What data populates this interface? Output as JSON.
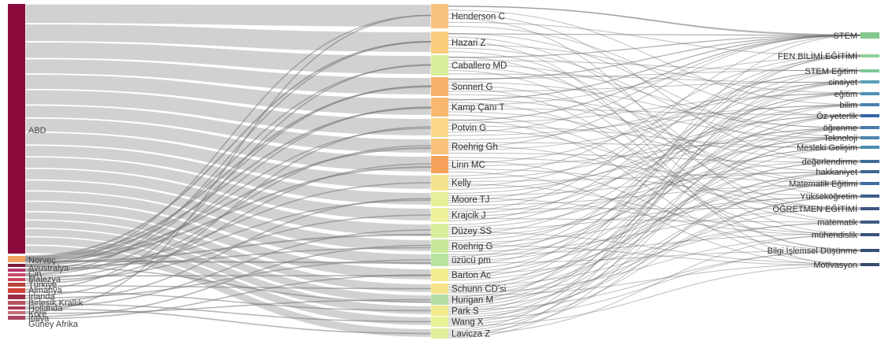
{
  "countries": [
    {
      "label": "ABD",
      "color": "#8b0a3c"
    },
    {
      "label": "Norveç",
      "color": "#f3a15f"
    },
    {
      "label": "Avustralya",
      "color": "#7b1b3e"
    },
    {
      "label": "Çin",
      "color": "#b8336a"
    },
    {
      "label": "Malezya",
      "color": "#c44a64"
    },
    {
      "label": "Türkiye",
      "color": "#c8405a"
    },
    {
      "label": "Almanya",
      "color": "#b8443f"
    },
    {
      "label": "İrlanda",
      "color": "#d0403a"
    },
    {
      "label": "Birleşik Krallık",
      "color": "#9a2f45"
    },
    {
      "label": "Hollanda",
      "color": "#b4545c"
    },
    {
      "label": "Kore",
      "color": "#a63b53"
    },
    {
      "label": "İtalya",
      "color": "#c46e73"
    },
    {
      "label": "Güney Afrika",
      "color": "#a74563"
    }
  ],
  "authors": [
    {
      "label": "Henderson C",
      "color": "#f7c27e"
    },
    {
      "label": "Hazari Z",
      "color": "#f9cd7c"
    },
    {
      "label": "Caballero MD",
      "color": "#d8ee9a"
    },
    {
      "label": "Sonnert G",
      "color": "#f7b26a"
    },
    {
      "label": "Kamp Çanı T",
      "color": "#f8b86e"
    },
    {
      "label": "Potvin G",
      "color": "#fbd78a"
    },
    {
      "label": "Roehrig Gh",
      "color": "#f9c27a"
    },
    {
      "label": "Linn MC",
      "color": "#f6a25a"
    },
    {
      "label": "Kelly",
      "color": "#f4e38e"
    },
    {
      "label": "Moore TJ",
      "color": "#e8ef9a"
    },
    {
      "label": "Krajcik J",
      "color": "#eef29a"
    },
    {
      "label": "Düzey SS",
      "color": "#d9ee9c"
    },
    {
      "label": "Roehrig G",
      "color": "#c8e89a"
    },
    {
      "label": "üzücü pm",
      "color": "#b8e2a0"
    },
    {
      "label": "Barton Ac",
      "color": "#f3ec8f"
    },
    {
      "label": "Schunn CD'si",
      "color": "#f6e48a"
    },
    {
      "label": "Hurigan M",
      "color": "#b6dea4"
    },
    {
      "label": "Park S",
      "color": "#f2ea8e"
    },
    {
      "label": "Wang X",
      "color": "#eaf296"
    },
    {
      "label": "Lavicza Z",
      "color": "#e3ee9c"
    }
  ],
  "keywords": [
    {
      "label": "STEM",
      "color": "#86c98e"
    },
    {
      "label": "FEN BİLİMİ EĞİTİMİ",
      "color": "#8ed09a"
    },
    {
      "label": "STEM Eğitimi",
      "color": "#7cc79a"
    },
    {
      "label": "cinsiyet",
      "color": "#5aa0b8"
    },
    {
      "label": "eğitim",
      "color": "#4c8fb8"
    },
    {
      "label": "bilim",
      "color": "#4a80b0"
    },
    {
      "label": "Öz yeterlik",
      "color": "#3565a8"
    },
    {
      "label": "öğrenme",
      "color": "#4a7aa8"
    },
    {
      "label": "Teknoloji",
      "color": "#4c86ae"
    },
    {
      "label": "Mesleki Gelişim",
      "color": "#4a8cb2"
    },
    {
      "label": "değerlendirme",
      "color": "#3f6d98"
    },
    {
      "label": "hakkaniyet",
      "color": "#3e6590"
    },
    {
      "label": "Matematik Eğitimi",
      "color": "#3c6ca0"
    },
    {
      "label": "Yükseköğretim",
      "color": "#3d5f8c"
    },
    {
      "label": "ÖĞRETMEN EĞİTİMİ",
      "color": "#3d5784"
    },
    {
      "label": "matematik",
      "color": "#3f5a80"
    },
    {
      "label": "mühendislik",
      "color": "#3c527a"
    },
    {
      "label": "Bilgi İşlemsel Düşünme",
      "color": "#394e74"
    },
    {
      "label": "Motivasyon",
      "color": "#394a70"
    }
  ]
}
